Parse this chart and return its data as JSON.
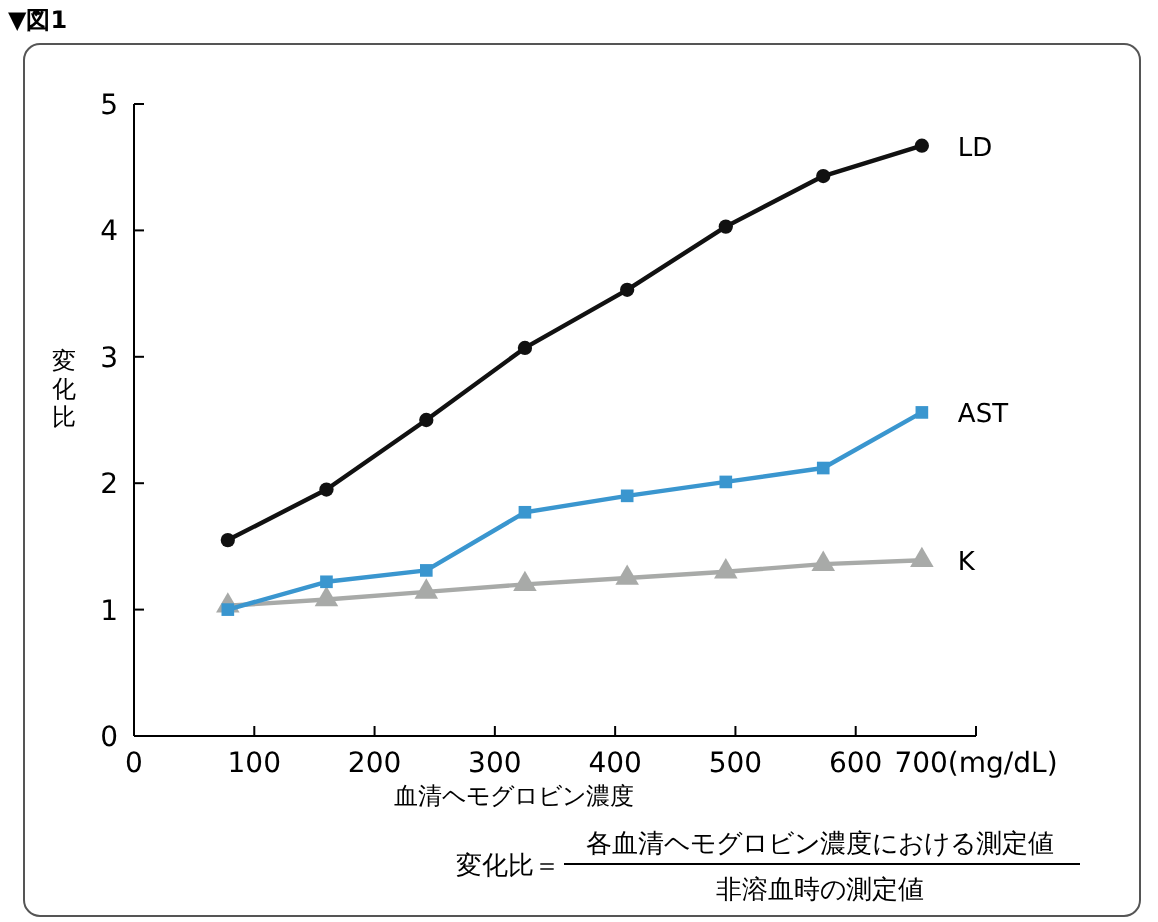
{
  "chart_data": {
    "type": "line",
    "title": "▼図1",
    "xlabel": "血清ヘモグロビン濃度",
    "ylabel": "変化比",
    "x": [
      78,
      160,
      243,
      325,
      410,
      492,
      573,
      655
    ],
    "series": [
      {
        "name": "LD",
        "color": "#111111",
        "marker": "circle",
        "values": [
          1.55,
          1.95,
          2.5,
          3.07,
          3.53,
          4.03,
          4.43,
          4.67
        ]
      },
      {
        "name": "AST",
        "color": "#3a96cf",
        "marker": "square",
        "values": [
          1.0,
          1.22,
          1.31,
          1.77,
          1.9,
          2.01,
          2.12,
          2.56
        ]
      },
      {
        "name": "K",
        "color": "#a8aaa8",
        "marker": "triangle",
        "values": [
          1.03,
          1.08,
          1.14,
          1.2,
          1.25,
          1.3,
          1.36,
          1.39
        ]
      }
    ],
    "xlim": [
      0,
      700
    ],
    "xticks": [
      0,
      100,
      200,
      300,
      400,
      500,
      600,
      {
        "value": 700,
        "label": "700(mg/dL)"
      }
    ],
    "ylim": [
      0,
      5
    ],
    "yticks": [
      0,
      1,
      2,
      3,
      4,
      5
    ],
    "grid": false,
    "annotations": [
      "変化比＝",
      "各血清ヘモグロビン濃度における測定値",
      "非溶血時の測定値"
    ]
  }
}
